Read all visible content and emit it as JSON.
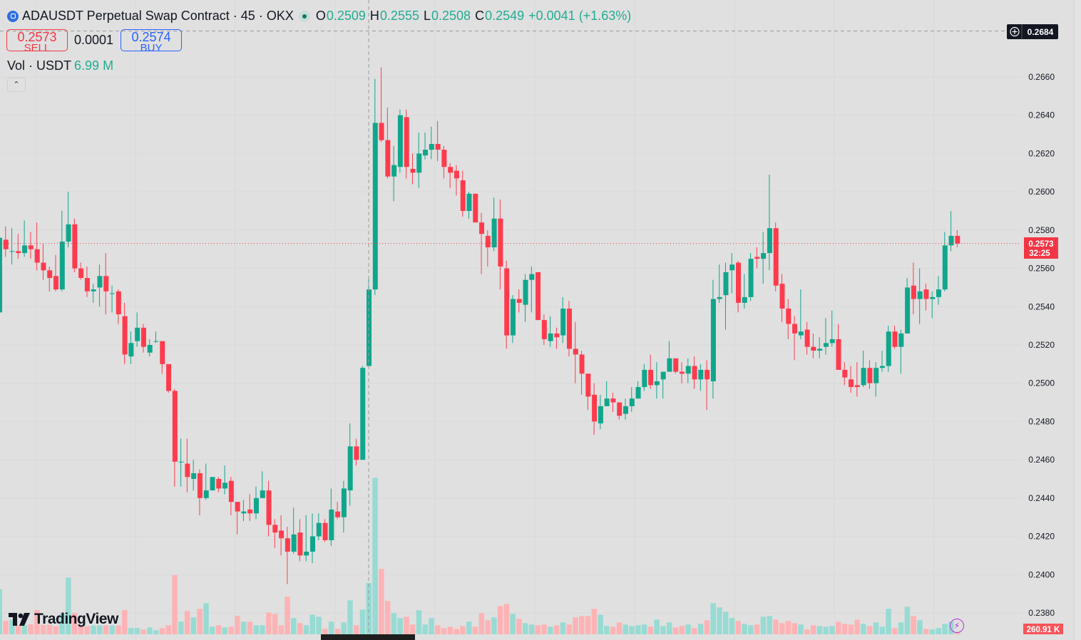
{
  "header": {
    "symbol_title": "ADAUSDT Perpetual Swap Contract",
    "interval": "45",
    "exchange": "OKX",
    "ohlc": {
      "o_label": "O",
      "o": "0.2509",
      "h_label": "H",
      "h": "0.2555",
      "l_label": "L",
      "l": "0.2508",
      "c_label": "C",
      "c": "0.2549",
      "change": "+0.0041 (+1.63%)"
    }
  },
  "trade": {
    "sell_price": "0.2573",
    "sell_label": "SELL",
    "spread": "0.0001",
    "buy_price": "0.2574",
    "buy_label": "BUY"
  },
  "volume_legend": {
    "label": "Vol · USDT",
    "value": "6.99 M"
  },
  "collapse_icon": "chevron-up-icon",
  "brand": "TradingView",
  "price_axis": {
    "crosshair_price": "0.2684",
    "last_price": "0.2573",
    "countdown": "32:25",
    "last_volume": "260.91 K"
  },
  "colors": {
    "up": "#0fa68c",
    "down": "#fe3b4d",
    "up_volume": "#97dbd3",
    "down_volume": "#fdb3b5",
    "background": "#e0e0e0"
  },
  "chart_data": {
    "type": "candlestick",
    "price_ticks": [
      "0.2660",
      "0.2640",
      "0.2620",
      "0.2600",
      "0.2580",
      "0.2560",
      "0.2540",
      "0.2520",
      "0.2500",
      "0.2480",
      "0.2460",
      "0.2440",
      "0.2420",
      "0.2400",
      "0.2380"
    ],
    "ylim": [
      0.237,
      0.269
    ],
    "grid": true,
    "crosshair_candle": 59,
    "candles_ohlc": [
      [
        0.2537,
        0.258,
        0.2535,
        0.2576
      ],
      [
        0.2575,
        0.2582,
        0.2566,
        0.257
      ],
      [
        0.2569,
        0.2581,
        0.2562,
        0.2569
      ],
      [
        0.2569,
        0.2578,
        0.2565,
        0.2568
      ],
      [
        0.2568,
        0.2585,
        0.2566,
        0.2572
      ],
      [
        0.2572,
        0.2579,
        0.2565,
        0.257
      ],
      [
        0.257,
        0.2584,
        0.2559,
        0.2563
      ],
      [
        0.2563,
        0.2573,
        0.2554,
        0.2559
      ],
      [
        0.2559,
        0.2561,
        0.2548,
        0.2555
      ],
      [
        0.2556,
        0.2567,
        0.2548,
        0.2549
      ],
      [
        0.2549,
        0.259,
        0.2548,
        0.2574
      ],
      [
        0.2574,
        0.26,
        0.2571,
        0.2583
      ],
      [
        0.2583,
        0.2586,
        0.2558,
        0.256
      ],
      [
        0.256,
        0.2563,
        0.2554,
        0.2555
      ],
      [
        0.2555,
        0.2561,
        0.2545,
        0.2548
      ],
      [
        0.2548,
        0.2552,
        0.2542,
        0.2549
      ],
      [
        0.255,
        0.2562,
        0.254,
        0.2556
      ],
      [
        0.2556,
        0.2568,
        0.2536,
        0.2548
      ],
      [
        0.2547,
        0.2551,
        0.2537,
        0.2547
      ],
      [
        0.2548,
        0.2549,
        0.2531,
        0.2536
      ],
      [
        0.2535,
        0.2542,
        0.251,
        0.2515
      ],
      [
        0.2514,
        0.2527,
        0.251,
        0.2521
      ],
      [
        0.2522,
        0.2537,
        0.2519,
        0.2529
      ],
      [
        0.2529,
        0.2531,
        0.2516,
        0.2519
      ],
      [
        0.2516,
        0.2523,
        0.2514,
        0.252
      ],
      [
        0.2522,
        0.2527,
        0.2521,
        0.2522
      ],
      [
        0.2522,
        0.2522,
        0.2505,
        0.251
      ],
      [
        0.251,
        0.251,
        0.2495,
        0.2496
      ],
      [
        0.2496,
        0.2497,
        0.2446,
        0.2459
      ],
      [
        0.2459,
        0.2471,
        0.2446,
        0.2459
      ],
      [
        0.2458,
        0.2471,
        0.2443,
        0.2451
      ],
      [
        0.245,
        0.246,
        0.2444,
        0.2453
      ],
      [
        0.2453,
        0.2455,
        0.2431,
        0.244
      ],
      [
        0.244,
        0.2458,
        0.2439,
        0.2444
      ],
      [
        0.2444,
        0.2451,
        0.2444,
        0.2451
      ],
      [
        0.245,
        0.2451,
        0.2443,
        0.2445
      ],
      [
        0.2445,
        0.2457,
        0.2442,
        0.2448
      ],
      [
        0.2449,
        0.2451,
        0.2431,
        0.2438
      ],
      [
        0.2438,
        0.2438,
        0.2421,
        0.2433
      ],
      [
        0.2432,
        0.2439,
        0.2428,
        0.2433
      ],
      [
        0.2434,
        0.2442,
        0.2428,
        0.2432
      ],
      [
        0.2432,
        0.2446,
        0.2429,
        0.244
      ],
      [
        0.244,
        0.2454,
        0.244,
        0.2444
      ],
      [
        0.2444,
        0.2449,
        0.242,
        0.2426
      ],
      [
        0.2426,
        0.2429,
        0.2414,
        0.2422
      ],
      [
        0.2423,
        0.2431,
        0.241,
        0.2419
      ],
      [
        0.2419,
        0.2425,
        0.2395,
        0.2412
      ],
      [
        0.2412,
        0.2435,
        0.2411,
        0.2421
      ],
      [
        0.2422,
        0.2429,
        0.2407,
        0.241
      ],
      [
        0.241,
        0.2431,
        0.2407,
        0.2412
      ],
      [
        0.2412,
        0.2432,
        0.2406,
        0.242
      ],
      [
        0.242,
        0.2432,
        0.2418,
        0.2427
      ],
      [
        0.2427,
        0.2429,
        0.2417,
        0.2418
      ],
      [
        0.2418,
        0.2445,
        0.2415,
        0.2434
      ],
      [
        0.2433,
        0.2438,
        0.2429,
        0.243
      ],
      [
        0.243,
        0.2449,
        0.2422,
        0.2445
      ],
      [
        0.2444,
        0.2479,
        0.2436,
        0.2467
      ],
      [
        0.2467,
        0.2471,
        0.2457,
        0.246
      ],
      [
        0.246,
        0.2509,
        0.246,
        0.2508
      ],
      [
        0.2509,
        0.2555,
        0.2508,
        0.2549
      ],
      [
        0.2549,
        0.2659,
        0.2546,
        0.2636
      ],
      [
        0.2636,
        0.2665,
        0.2626,
        0.2627
      ],
      [
        0.2627,
        0.2644,
        0.2607,
        0.2608
      ],
      [
        0.2608,
        0.2624,
        0.2595,
        0.2614
      ],
      [
        0.2613,
        0.2643,
        0.261,
        0.264
      ],
      [
        0.2639,
        0.2643,
        0.2607,
        0.2613
      ],
      [
        0.2612,
        0.262,
        0.2604,
        0.261
      ],
      [
        0.261,
        0.2631,
        0.2602,
        0.262
      ],
      [
        0.2619,
        0.2631,
        0.2617,
        0.2622
      ],
      [
        0.2622,
        0.2634,
        0.2617,
        0.2625
      ],
      [
        0.2625,
        0.2637,
        0.2616,
        0.2622
      ],
      [
        0.2622,
        0.2624,
        0.2607,
        0.2613
      ],
      [
        0.2613,
        0.2615,
        0.2602,
        0.261
      ],
      [
        0.2611,
        0.2614,
        0.2598,
        0.2607
      ],
      [
        0.2606,
        0.2611,
        0.2587,
        0.259
      ],
      [
        0.259,
        0.26,
        0.2586,
        0.2599
      ],
      [
        0.2599,
        0.2599,
        0.2584,
        0.2584
      ],
      [
        0.2584,
        0.2589,
        0.2557,
        0.2578
      ],
      [
        0.2577,
        0.258,
        0.2561,
        0.2571
      ],
      [
        0.2571,
        0.2597,
        0.2569,
        0.2586
      ],
      [
        0.2586,
        0.2596,
        0.2549,
        0.2561
      ],
      [
        0.256,
        0.2564,
        0.2518,
        0.2525
      ],
      [
        0.2525,
        0.2546,
        0.2521,
        0.2544
      ],
      [
        0.2544,
        0.2549,
        0.2537,
        0.2542
      ],
      [
        0.2541,
        0.2557,
        0.2532,
        0.2554
      ],
      [
        0.2554,
        0.2561,
        0.2537,
        0.2557
      ],
      [
        0.2558,
        0.2558,
        0.2533,
        0.2533
      ],
      [
        0.2533,
        0.2536,
        0.252,
        0.2523
      ],
      [
        0.2522,
        0.2535,
        0.2519,
        0.2526
      ],
      [
        0.2526,
        0.2529,
        0.2518,
        0.2524
      ],
      [
        0.2525,
        0.2545,
        0.2521,
        0.2539
      ],
      [
        0.2539,
        0.2543,
        0.2514,
        0.2518
      ],
      [
        0.2518,
        0.2532,
        0.25,
        0.2515
      ],
      [
        0.2515,
        0.2517,
        0.2494,
        0.2505
      ],
      [
        0.2505,
        0.2505,
        0.2486,
        0.2493
      ],
      [
        0.2494,
        0.25,
        0.2473,
        0.248
      ],
      [
        0.2479,
        0.2494,
        0.2476,
        0.2488
      ],
      [
        0.2488,
        0.2501,
        0.2488,
        0.2492
      ],
      [
        0.2492,
        0.2495,
        0.2485,
        0.249
      ],
      [
        0.249,
        0.249,
        0.2481,
        0.2483
      ],
      [
        0.2484,
        0.2492,
        0.2481,
        0.2488
      ],
      [
        0.2488,
        0.2498,
        0.2485,
        0.2492
      ],
      [
        0.2492,
        0.2501,
        0.2492,
        0.2498
      ],
      [
        0.2498,
        0.251,
        0.2496,
        0.2507
      ],
      [
        0.2507,
        0.2515,
        0.2497,
        0.2499
      ],
      [
        0.2499,
        0.2511,
        0.2492,
        0.2501
      ],
      [
        0.2502,
        0.2506,
        0.2492,
        0.2506
      ],
      [
        0.2506,
        0.2522,
        0.2506,
        0.2513
      ],
      [
        0.2513,
        0.2513,
        0.2505,
        0.2506
      ],
      [
        0.2506,
        0.2511,
        0.25,
        0.2505
      ],
      [
        0.2505,
        0.2513,
        0.25,
        0.2509
      ],
      [
        0.2509,
        0.2514,
        0.2497,
        0.2502
      ],
      [
        0.2502,
        0.251,
        0.2496,
        0.2507
      ],
      [
        0.2507,
        0.2512,
        0.2486,
        0.2502
      ],
      [
        0.2501,
        0.2554,
        0.2492,
        0.2544
      ],
      [
        0.2544,
        0.2562,
        0.2542,
        0.2545
      ],
      [
        0.2546,
        0.2563,
        0.2528,
        0.2558
      ],
      [
        0.2559,
        0.2568,
        0.2547,
        0.2562
      ],
      [
        0.2563,
        0.2564,
        0.2537,
        0.2542
      ],
      [
        0.2542,
        0.2557,
        0.2539,
        0.2545
      ],
      [
        0.2545,
        0.2568,
        0.2543,
        0.2565
      ],
      [
        0.2566,
        0.2571,
        0.256,
        0.2565
      ],
      [
        0.2565,
        0.2579,
        0.2552,
        0.2568
      ],
      [
        0.2568,
        0.2609,
        0.2559,
        0.2581
      ],
      [
        0.2581,
        0.2584,
        0.2548,
        0.2551
      ],
      [
        0.2552,
        0.2557,
        0.2532,
        0.2539
      ],
      [
        0.2539,
        0.2544,
        0.2523,
        0.2531
      ],
      [
        0.2531,
        0.2535,
        0.2512,
        0.2526
      ],
      [
        0.2525,
        0.2549,
        0.2523,
        0.2527
      ],
      [
        0.2528,
        0.2532,
        0.2515,
        0.2519
      ],
      [
        0.2519,
        0.2526,
        0.2513,
        0.2517
      ],
      [
        0.2517,
        0.2524,
        0.2513,
        0.2518
      ],
      [
        0.2519,
        0.2534,
        0.2515,
        0.2521
      ],
      [
        0.2521,
        0.2538,
        0.2519,
        0.2523
      ],
      [
        0.2523,
        0.2531,
        0.2507,
        0.2507
      ],
      [
        0.2507,
        0.2511,
        0.2499,
        0.2503
      ],
      [
        0.2502,
        0.2509,
        0.2495,
        0.2498
      ],
      [
        0.2499,
        0.2511,
        0.2493,
        0.2498
      ],
      [
        0.2499,
        0.2517,
        0.2498,
        0.2508
      ],
      [
        0.2508,
        0.2512,
        0.2497,
        0.25
      ],
      [
        0.25,
        0.2511,
        0.2493,
        0.2508
      ],
      [
        0.2508,
        0.2517,
        0.2506,
        0.2509
      ],
      [
        0.2509,
        0.253,
        0.2506,
        0.2527
      ],
      [
        0.2527,
        0.253,
        0.2518,
        0.2519
      ],
      [
        0.2519,
        0.2528,
        0.2505,
        0.2526
      ],
      [
        0.2526,
        0.2555,
        0.2526,
        0.255
      ],
      [
        0.2551,
        0.2563,
        0.2536,
        0.2544
      ],
      [
        0.2544,
        0.256,
        0.2531,
        0.2548
      ],
      [
        0.2549,
        0.2552,
        0.2538,
        0.2544
      ],
      [
        0.2544,
        0.2548,
        0.2534,
        0.2545
      ],
      [
        0.2545,
        0.2556,
        0.2541,
        0.2549
      ],
      [
        0.2549,
        0.2579,
        0.2548,
        0.2572
      ],
      [
        0.2572,
        0.259,
        0.2569,
        0.2577
      ],
      [
        0.2577,
        0.258,
        0.2571,
        0.2573
      ]
    ],
    "volume_unit": "M USDT",
    "volumes": [
      6.14,
      1.84,
      2.0,
      1.2,
      1.2,
      1.36,
      3.3,
      1.29,
      1.29,
      1.1,
      2.81,
      7.73,
      2.88,
      1.2,
      1.1,
      1.2,
      1.2,
      1.2,
      1.2,
      1.2,
      3.3,
      0.87,
      0.87,
      0.65,
      0.94,
      0.55,
      0.84,
      1.23,
      8.05,
      1.71,
      3.17,
      2.3,
      3.46,
      4.24,
      1.03,
      1.23,
      0.94,
      1.03,
      2.49,
      1.71,
      1.71,
      1.23,
      1.23,
      2.97,
      2.78,
      1.23,
      5.11,
      2.2,
      1.52,
      1.23,
      2.68,
      2.39,
      0.74,
      1.71,
      0.74,
      1.62,
      4.62,
      1.23,
      3.36,
      6.99,
      21.3,
      8.89,
      4.53,
      2.88,
      2.2,
      2.39,
      1.33,
      3.27,
      1.33,
      2.2,
      1.23,
      0.84,
      1.03,
      0.74,
      1.13,
      1.71,
      1.03,
      2.88,
      1.91,
      2.3,
      3.85,
      4.14,
      2.78,
      2.1,
      1.52,
      1.33,
      1.23,
      1.33,
      1.03,
      1.23,
      1.62,
      1.33,
      2.3,
      2.49,
      2.49,
      3.46,
      2.68,
      1.13,
      1.03,
      1.62,
      1.33,
      1.13,
      1.23,
      1.33,
      1.03,
      2.0,
      1.13,
      1.62,
      0.94,
      1.13,
      1.33,
      0.84,
      1.42,
      1.91,
      4.24,
      3.66,
      3.07,
      2.2,
      1.81,
      1.42,
      1.23,
      1.33,
      2.39,
      2.49,
      2.0,
      1.52,
      1.81,
      1.52,
      1.33,
      0.65,
      1.23,
      1.13,
      1.03,
      1.13,
      1.71,
      1.42,
      1.33,
      2.0,
      1.42,
      1.13,
      1.62,
      1.03,
      3.46,
      0.84,
      1.62,
      3.75,
      2.49,
      1.91,
      0.74,
      0.65,
      0.84,
      1.42,
      1.71,
      0.26
    ]
  }
}
